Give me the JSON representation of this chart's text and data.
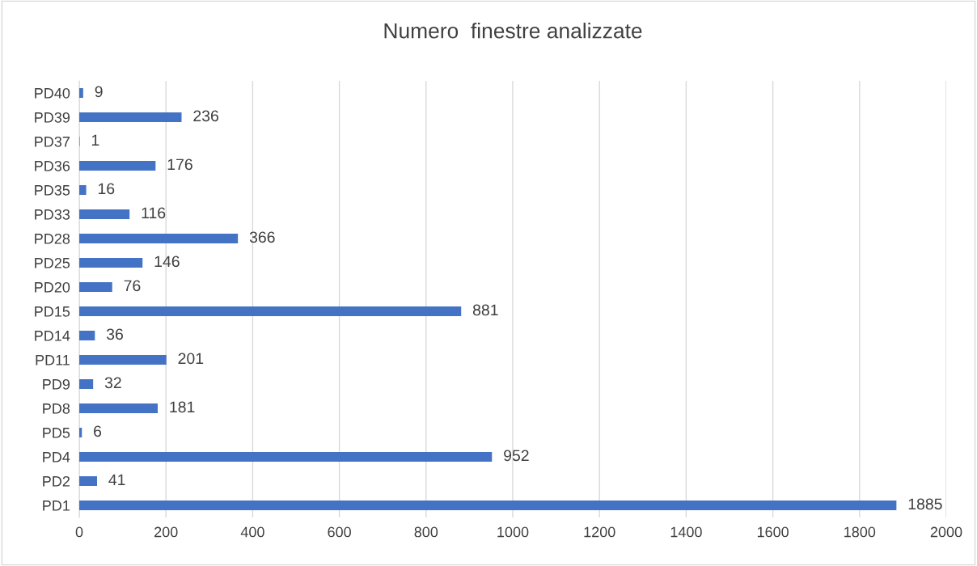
{
  "chart_data": {
    "type": "bar",
    "orientation": "horizontal",
    "title": "Numero  finestre analizzate",
    "categories": [
      "PD40",
      "PD39",
      "PD37",
      "PD36",
      "PD35",
      "PD33",
      "PD28",
      "PD25",
      "PD20",
      "PD15",
      "PD14",
      "PD11",
      "PD9",
      "PD8",
      "PD5",
      "PD4",
      "PD2",
      "PD1"
    ],
    "values": [
      9,
      236,
      1,
      176,
      16,
      116,
      366,
      146,
      76,
      881,
      36,
      201,
      32,
      181,
      6,
      952,
      41,
      1885
    ],
    "color": "#4472c4",
    "xlim": [
      0,
      2000
    ],
    "xticks": [
      0,
      200,
      400,
      600,
      800,
      1000,
      1200,
      1400,
      1600,
      1800,
      2000
    ],
    "grid": "x",
    "data_labels": true
  }
}
